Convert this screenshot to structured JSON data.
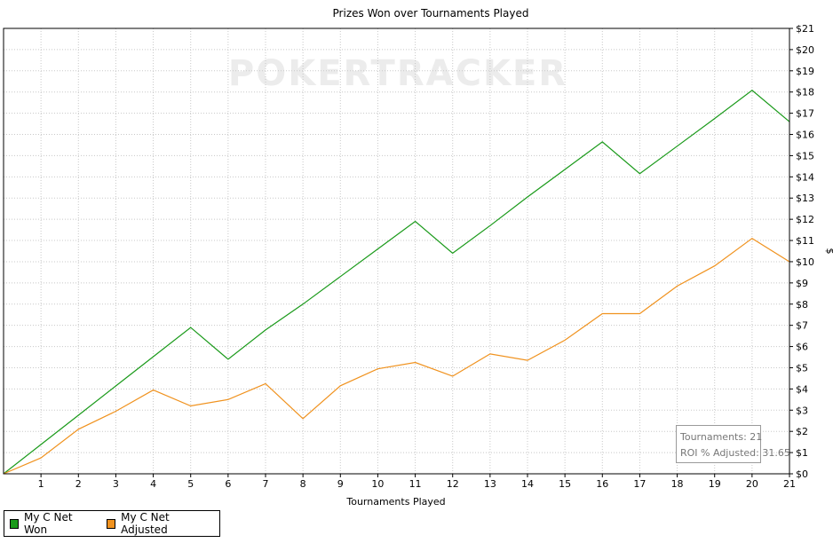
{
  "chart_data": {
    "type": "line",
    "title": "Prizes Won over Tournaments Played",
    "xlabel": "Tournaments Played",
    "ylabel": "$",
    "x": [
      0,
      1,
      2,
      3,
      4,
      5,
      6,
      7,
      8,
      9,
      10,
      11,
      12,
      13,
      14,
      15,
      16,
      17,
      18,
      19,
      20,
      21
    ],
    "xlim": [
      0,
      21
    ],
    "ylim": [
      0,
      21
    ],
    "x_ticks": [
      1,
      2,
      3,
      4,
      5,
      6,
      7,
      8,
      9,
      10,
      11,
      12,
      13,
      14,
      15,
      16,
      17,
      18,
      19,
      20,
      21
    ],
    "y_ticks": [
      "$0",
      "$1",
      "$2",
      "$3",
      "$4",
      "$5",
      "$6",
      "$7",
      "$8",
      "$9",
      "$10",
      "$11",
      "$12",
      "$13",
      "$14",
      "$15",
      "$16",
      "$17",
      "$18",
      "$19",
      "$20",
      "$21"
    ],
    "y_axis_side": "right",
    "grid": true,
    "legend_position": "bottom-left",
    "series": [
      {
        "name": "My C Net Won",
        "color": "#1a9a1a",
        "values": [
          0,
          1.38,
          2.76,
          4.14,
          5.52,
          6.9,
          5.4,
          6.78,
          8.0,
          9.3,
          10.6,
          11.9,
          10.4,
          11.7,
          13.05,
          14.35,
          15.65,
          14.15,
          15.45,
          16.75,
          18.08,
          16.6
        ]
      },
      {
        "name": "My C Net Adjusted",
        "color": "#f0921e",
        "values": [
          0,
          0.75,
          2.1,
          2.95,
          3.95,
          3.2,
          3.5,
          4.25,
          2.6,
          4.15,
          4.95,
          5.25,
          4.6,
          5.65,
          5.35,
          6.3,
          7.55,
          7.55,
          8.85,
          9.8,
          11.1,
          10.0
        ]
      }
    ],
    "watermark": "POKERTRACKER",
    "info_box": {
      "tournaments": "Tournaments: 21",
      "roi": "ROI % Adjusted: 31.65"
    }
  }
}
